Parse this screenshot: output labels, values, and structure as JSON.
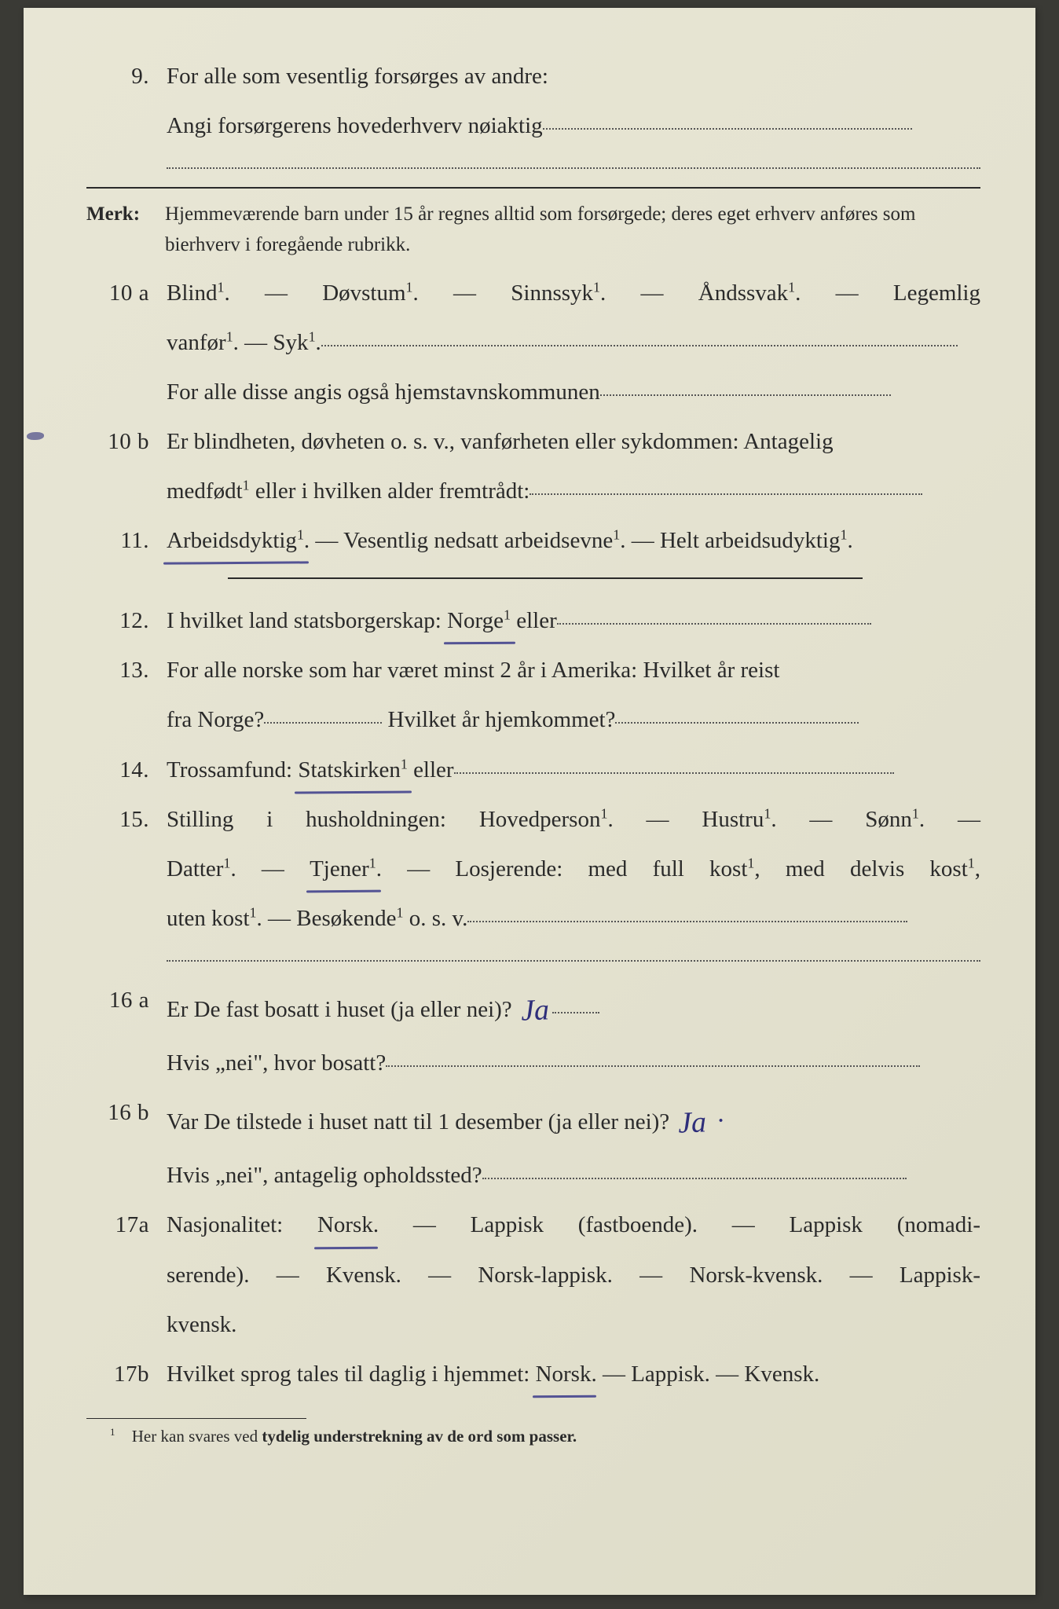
{
  "q9": {
    "num": "9.",
    "line1": "For alle som vesentlig forsørges av andre:",
    "line2_a": "Angi forsørgerens hovederhverv nøiaktig"
  },
  "merk": {
    "label": "Merk:",
    "text": "Hjemmeværende barn under 15 år regnes alltid som forsørgede; deres eget erhverv anføres som bierhverv i foregående rubrikk."
  },
  "q10a": {
    "num": "10 a",
    "l1": "Blind¹.   —   Døvstum¹.   —   Sinnssyk¹.   —   Åndssvak¹.   —   Legemlig",
    "l2a": "vanfør¹.  —  Syk¹.",
    "l3": "For alle disse angis også hjemstavnskommunen"
  },
  "q10b": {
    "num": "10 b",
    "l1": "Er blindheten, døvheten o. s. v., vanførheten eller sykdommen: Antagelig",
    "l2a": "medfødt¹ eller i hvilken alder fremtrådt:"
  },
  "q11": {
    "num": "11.",
    "w_arbeids": "Arbeidsdyktig¹",
    "rest": ". — Vesentlig nedsatt arbeidsevne¹. — Helt arbeidsudyktig¹."
  },
  "q12": {
    "num": "12.",
    "pre": "I hvilket land statsborgerskap:  ",
    "w": "Norge¹",
    "post": " eller"
  },
  "q13": {
    "num": "13.",
    "l1": "For alle norske som har været minst 2 år i Amerika:  Hvilket år reist",
    "l2a": "fra Norge?",
    "l2b": "Hvilket år hjemkommet?"
  },
  "q14": {
    "num": "14.",
    "pre": "Trossamfund:   ",
    "w": "Statskirken¹",
    "post": " eller"
  },
  "q15": {
    "num": "15.",
    "l1": "Stilling  i  husholdningen:   Hovedperson¹.  —  Hustru¹.  —  Sønn¹.  —",
    "l2a": "Datter¹.  —  ",
    "w_tjener": "Tjener¹",
    "l2b": ".  —  Losjerende:  med full kost¹,  med delvis kost¹,",
    "l3a": "uten kost¹.  —  Besøkende¹ o. s. v."
  },
  "q16a": {
    "num": "16 a",
    "l1a": "Er De fast bosatt i huset (ja eller nei)?",
    "hand1": "Ja",
    "l2a": "Hvis „nei\", hvor bosatt?"
  },
  "q16b": {
    "num": "16 b",
    "l1a": "Var De tilstede i huset natt til 1 desember (ja eller nei)?",
    "hand1": "Ja",
    "l2a": "Hvis „nei\", antagelig opholdssted?"
  },
  "q17a": {
    "num": "17a",
    "pre": "Nasjonalitet:   ",
    "w": "Norsk",
    "post1": ".  —  Lappisk (fastboende).  —  Lappisk (nomadi-",
    "l2": "serende).  —  Kvensk.  —  Norsk-lappisk.  —  Norsk-kvensk.  —  Lappisk-",
    "l3": "kvensk."
  },
  "q17b": {
    "num": "17b",
    "pre": "Hvilket sprog tales til daglig i hjemmet: ",
    "w": "Norsk",
    "post": ". — Lappisk. — Kvensk."
  },
  "footnote": {
    "mark": "1",
    "pre": "Her kan svares ved ",
    "bold": "tydelig understrekning av de ord som passer."
  }
}
